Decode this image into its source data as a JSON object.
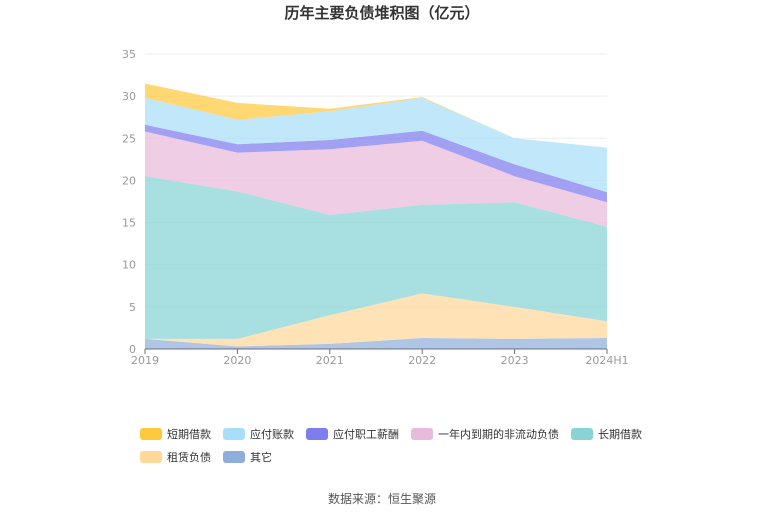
{
  "chart_data": {
    "type": "area",
    "stacked": true,
    "title": "历年主要负债堆积图（亿元）",
    "xlabel": "",
    "ylabel": "",
    "categories": [
      "2019",
      "2020",
      "2021",
      "2022",
      "2023",
      "2024H1"
    ],
    "ylim": [
      0,
      35
    ],
    "yticks": [
      0,
      5,
      10,
      15,
      20,
      25,
      30,
      35
    ],
    "grid": true,
    "legend_position": "bottom",
    "series": [
      {
        "name": "其它",
        "color": "#8FAEDC",
        "values": [
          1.2,
          0.3,
          0.6,
          1.3,
          1.2,
          1.3
        ]
      },
      {
        "name": "租赁负债",
        "color": "#FFD89A",
        "values": [
          0.0,
          0.9,
          3.4,
          5.3,
          3.8,
          2.0
        ]
      },
      {
        "name": "长期借款",
        "color": "#87D3D5",
        "values": [
          19.3,
          17.5,
          11.9,
          10.5,
          12.4,
          11.2
        ]
      },
      {
        "name": "一年内到期的非流动负债",
        "color": "#E8BADB",
        "values": [
          5.3,
          4.6,
          7.8,
          7.6,
          3.1,
          2.9
        ]
      },
      {
        "name": "应付职工薪酬",
        "color": "#7E7CEF",
        "values": [
          0.8,
          1.0,
          1.1,
          1.2,
          1.4,
          1.2
        ]
      },
      {
        "name": "应付账款",
        "color": "#A8DFF8",
        "values": [
          3.2,
          2.9,
          3.4,
          3.9,
          3.1,
          5.3
        ]
      },
      {
        "name": "短期借款",
        "color": "#FFC93D",
        "values": [
          1.7,
          2.0,
          0.3,
          0.1,
          0.0,
          0.0
        ]
      }
    ]
  },
  "legend_order": [
    "短期借款",
    "应付账款",
    "应付职工薪酬",
    "一年内到期的非流动负债",
    "长期借款",
    "租赁负债",
    "其它"
  ],
  "source_text": "数据来源：恒生聚源"
}
